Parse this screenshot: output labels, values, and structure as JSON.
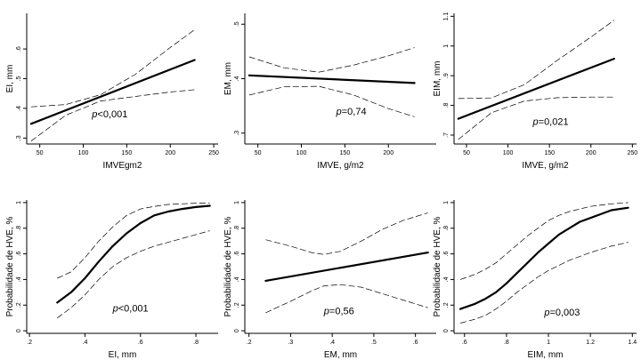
{
  "chart_data": [
    {
      "type": "line",
      "xlabel": "IMVEgm2",
      "ylabel": "EI, mm",
      "xlim": [
        35,
        255
      ],
      "ylim": [
        0.28,
        0.72
      ],
      "xticks": [
        50,
        100,
        150,
        200,
        250
      ],
      "xticklabels": [
        "50",
        "100",
        "150",
        "200",
        "250"
      ],
      "yticks": [
        0.3,
        0.4,
        0.5,
        0.6
      ],
      "yticklabels": [
        ".3",
        ".4",
        ".5",
        ".6"
      ],
      "series": [
        {
          "role": "fit",
          "x": [
            40,
            228
          ],
          "y": [
            0.348,
            0.563
          ]
        },
        {
          "role": "ci_upper",
          "x": [
            40,
            80,
            120,
            160,
            200,
            228
          ],
          "y": [
            0.405,
            0.413,
            0.446,
            0.515,
            0.605,
            0.665
          ]
        },
        {
          "role": "ci_lower",
          "x": [
            40,
            80,
            120,
            160,
            200,
            228
          ],
          "y": [
            0.29,
            0.377,
            0.425,
            0.44,
            0.455,
            0.463
          ]
        }
      ],
      "annotation": {
        "p_label": "p",
        "p_rest": "<0,001",
        "x": 110,
        "y": 0.37
      }
    },
    {
      "type": "line",
      "xlabel": "IMVE, g/m2",
      "ylabel": "EM, mm",
      "xlim": [
        35,
        255
      ],
      "ylim": [
        0.28,
        0.52
      ],
      "xticks": [
        50,
        100,
        150,
        200
      ],
      "xticklabels": [
        "50",
        "100",
        "150",
        "200"
      ],
      "yticks": [
        0.3,
        0.4,
        0.5
      ],
      "yticklabels": [
        ".3",
        ".4",
        ".5"
      ],
      "series": [
        {
          "role": "fit",
          "x": [
            40,
            230
          ],
          "y": [
            0.406,
            0.392
          ]
        },
        {
          "role": "ci_upper",
          "x": [
            40,
            80,
            120,
            160,
            200,
            230
          ],
          "y": [
            0.44,
            0.42,
            0.412,
            0.425,
            0.442,
            0.457
          ]
        },
        {
          "role": "ci_lower",
          "x": [
            40,
            80,
            120,
            160,
            200,
            230
          ],
          "y": [
            0.37,
            0.385,
            0.386,
            0.37,
            0.345,
            0.33
          ]
        }
      ],
      "annotation": {
        "p_label": "p",
        "p_rest": "=0,74",
        "x": 140,
        "y": 0.334
      }
    },
    {
      "type": "line",
      "xlabel": "IMVE, g/m2",
      "ylabel": "EIM, mm",
      "xlim": [
        35,
        255
      ],
      "ylim": [
        0.67,
        1.11
      ],
      "xticks": [
        50,
        100,
        150,
        200,
        250
      ],
      "xticklabels": [
        "50",
        "100",
        "150",
        "200",
        "250"
      ],
      "yticks": [
        0.7,
        0.8,
        0.9,
        1.0,
        1.1
      ],
      "yticklabels": [
        ".7",
        ".8",
        ".9",
        "1",
        "1.1"
      ],
      "series": [
        {
          "role": "fit",
          "x": [
            40,
            228
          ],
          "y": [
            0.755,
            0.957
          ]
        },
        {
          "role": "ci_upper",
          "x": [
            40,
            80,
            120,
            160,
            200,
            228
          ],
          "y": [
            0.823,
            0.825,
            0.87,
            0.953,
            1.03,
            1.087
          ]
        },
        {
          "role": "ci_lower",
          "x": [
            40,
            80,
            120,
            160,
            200,
            228
          ],
          "y": [
            0.685,
            0.775,
            0.815,
            0.826,
            0.828,
            0.828
          ]
        }
      ],
      "annotation": {
        "p_label": "p",
        "p_rest": "=0,021",
        "x": 130,
        "y": 0.735
      }
    },
    {
      "type": "line",
      "xlabel": "EI, mm",
      "ylabel": "Probabilidade de HVE, %",
      "xlim": [
        0.19,
        0.88
      ],
      "ylim": [
        -0.02,
        1.02
      ],
      "xticks": [
        0.2,
        0.4,
        0.6,
        0.8
      ],
      "xticklabels": [
        ".2",
        ".4",
        ".6",
        ".8"
      ],
      "yticks": [
        0,
        0.2,
        0.4,
        0.6,
        0.8,
        1.0
      ],
      "yticklabels": [
        "0",
        ".2",
        ".4",
        ".6",
        ".8",
        "1"
      ],
      "series": [
        {
          "role": "fit",
          "x": [
            0.3,
            0.35,
            0.4,
            0.45,
            0.5,
            0.55,
            0.6,
            0.65,
            0.7,
            0.75,
            0.8,
            0.85
          ],
          "y": [
            0.22,
            0.3,
            0.41,
            0.54,
            0.66,
            0.76,
            0.84,
            0.9,
            0.93,
            0.95,
            0.965,
            0.975
          ]
        },
        {
          "role": "ci_upper",
          "x": [
            0.3,
            0.35,
            0.4,
            0.45,
            0.5,
            0.55,
            0.6,
            0.65,
            0.7,
            0.75,
            0.8,
            0.85
          ],
          "y": [
            0.41,
            0.46,
            0.57,
            0.7,
            0.81,
            0.9,
            0.95,
            0.97,
            0.985,
            0.99,
            0.995,
            0.997
          ]
        },
        {
          "role": "ci_lower",
          "x": [
            0.3,
            0.35,
            0.4,
            0.45,
            0.5,
            0.55,
            0.6,
            0.65,
            0.7,
            0.75,
            0.8,
            0.85
          ],
          "y": [
            0.1,
            0.18,
            0.28,
            0.4,
            0.5,
            0.57,
            0.62,
            0.66,
            0.69,
            0.72,
            0.75,
            0.78
          ]
        }
      ],
      "annotation": {
        "p_label": "p",
        "p_rest": "<0,001",
        "x": 0.5,
        "y": 0.15
      }
    },
    {
      "type": "line",
      "xlabel": "EM, mm",
      "ylabel": "Probabilidade de HVE, %",
      "xlim": [
        0.19,
        0.65
      ],
      "ylim": [
        -0.02,
        1.02
      ],
      "xticks": [
        0.2,
        0.3,
        0.4,
        0.5,
        0.6
      ],
      "xticklabels": [
        ".2",
        ".3",
        ".4",
        ".5",
        ".6"
      ],
      "yticks": [
        0,
        0.2,
        0.4,
        0.6,
        0.8,
        1.0
      ],
      "yticklabels": [
        "0",
        ".2",
        ".4",
        ".6",
        ".8",
        "1"
      ],
      "series": [
        {
          "role": "fit",
          "x": [
            0.24,
            0.63
          ],
          "y": [
            0.39,
            0.61
          ]
        },
        {
          "role": "ci_upper",
          "x": [
            0.24,
            0.3,
            0.35,
            0.38,
            0.42,
            0.47,
            0.52,
            0.57,
            0.63
          ],
          "y": [
            0.71,
            0.66,
            0.61,
            0.595,
            0.62,
            0.7,
            0.79,
            0.86,
            0.92
          ]
        },
        {
          "role": "ci_lower",
          "x": [
            0.24,
            0.3,
            0.35,
            0.38,
            0.42,
            0.47,
            0.52,
            0.57,
            0.63
          ],
          "y": [
            0.14,
            0.23,
            0.31,
            0.35,
            0.36,
            0.34,
            0.29,
            0.24,
            0.18
          ]
        }
      ],
      "annotation": {
        "p_label": "p",
        "p_rest": "=0,56",
        "x": 0.38,
        "y": 0.13
      }
    },
    {
      "type": "line",
      "xlabel": "EIM, mm",
      "ylabel": "Probabilidade de HVE, %",
      "xlim": [
        0.55,
        1.42
      ],
      "ylim": [
        -0.02,
        1.02
      ],
      "xticks": [
        0.6,
        0.8,
        1.0,
        1.2,
        1.4
      ],
      "xticklabels": [
        ".6",
        ".8",
        "1",
        "1.2",
        "1.4"
      ],
      "yticks": [
        0,
        0.2,
        0.4,
        0.6,
        0.8,
        1.0
      ],
      "yticklabels": [
        "0",
        ".2",
        ".4",
        ".6",
        ".8",
        "1"
      ],
      "series": [
        {
          "role": "fit",
          "x": [
            0.58,
            0.65,
            0.7,
            0.75,
            0.8,
            0.85,
            0.9,
            0.95,
            1.0,
            1.05,
            1.1,
            1.15,
            1.2,
            1.25,
            1.3,
            1.38
          ],
          "y": [
            0.17,
            0.21,
            0.25,
            0.3,
            0.37,
            0.45,
            0.53,
            0.61,
            0.68,
            0.75,
            0.8,
            0.85,
            0.88,
            0.91,
            0.94,
            0.96
          ]
        },
        {
          "role": "ci_upper",
          "x": [
            0.58,
            0.65,
            0.7,
            0.75,
            0.8,
            0.85,
            0.9,
            0.95,
            1.0,
            1.05,
            1.1,
            1.2,
            1.3,
            1.38
          ],
          "y": [
            0.4,
            0.44,
            0.48,
            0.53,
            0.6,
            0.67,
            0.74,
            0.8,
            0.86,
            0.9,
            0.93,
            0.97,
            0.99,
            1.0
          ]
        },
        {
          "role": "ci_lower",
          "x": [
            0.58,
            0.65,
            0.7,
            0.75,
            0.8,
            0.85,
            0.9,
            0.95,
            1.0,
            1.05,
            1.1,
            1.2,
            1.3,
            1.38
          ],
          "y": [
            0.06,
            0.09,
            0.12,
            0.17,
            0.23,
            0.3,
            0.36,
            0.42,
            0.47,
            0.51,
            0.55,
            0.61,
            0.66,
            0.69
          ]
        }
      ],
      "annotation": {
        "p_label": "p",
        "p_rest": "=0,003",
        "x": 0.98,
        "y": 0.12
      }
    }
  ]
}
